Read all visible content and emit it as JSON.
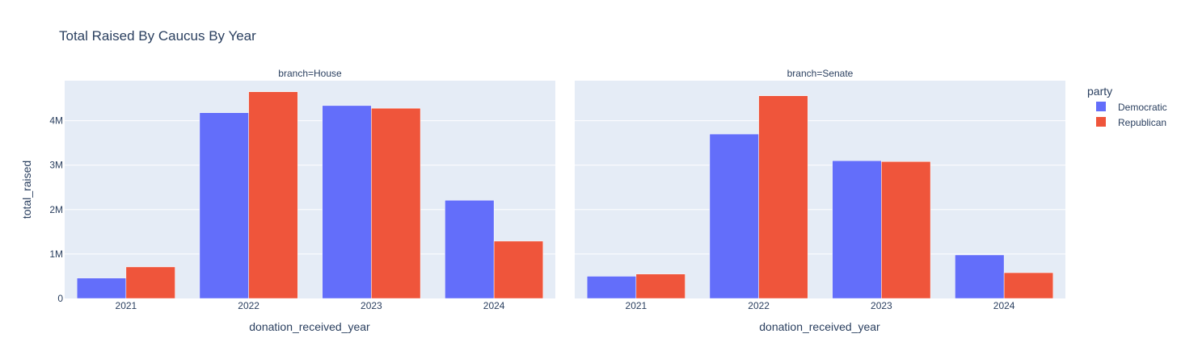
{
  "chart_data": {
    "type": "bar",
    "title": "Total Raised By Caucus By Year",
    "xlabel": "donation_received_year",
    "ylabel": "total_raised",
    "categories": [
      "2021",
      "2022",
      "2023",
      "2024"
    ],
    "ylim": [
      0,
      4900000
    ],
    "yticks": [
      0,
      1000000,
      2000000,
      3000000,
      4000000
    ],
    "ytick_labels": [
      "0",
      "1M",
      "2M",
      "3M",
      "4M"
    ],
    "grid": true,
    "barmode": "group",
    "legend": {
      "title": "party",
      "placement": "right",
      "entries": [
        "Democratic",
        "Republican"
      ]
    },
    "colors": {
      "Democratic": "#636efa",
      "Republican": "#ef553b",
      "plot_background": "#e5ecf6",
      "text": "#2a3f5f"
    },
    "facets": [
      {
        "title": "branch=House",
        "series": [
          {
            "name": "Democratic",
            "values": [
              460000,
              4180000,
              4340000,
              2210000
            ]
          },
          {
            "name": "Republican",
            "values": [
              710000,
              4650000,
              4280000,
              1290000
            ]
          }
        ]
      },
      {
        "title": "branch=Senate",
        "series": [
          {
            "name": "Democratic",
            "values": [
              500000,
              3700000,
              3100000,
              980000
            ]
          },
          {
            "name": "Republican",
            "values": [
              550000,
              4560000,
              3080000,
              580000
            ]
          }
        ]
      }
    ]
  }
}
